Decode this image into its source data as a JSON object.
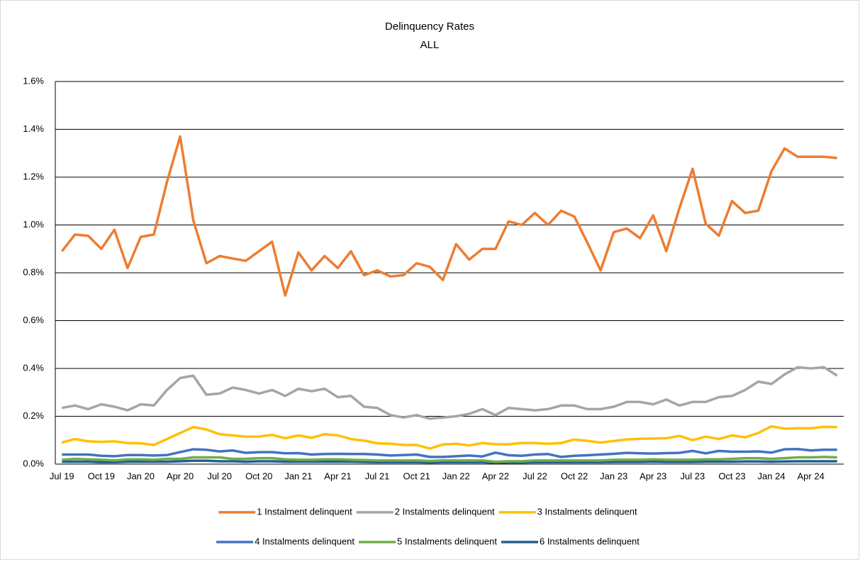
{
  "chart_data": {
    "type": "line",
    "title": "Delinquency Rates",
    "subtitle": "ALL",
    "categories": [
      "Jul 19",
      null,
      null,
      "Oct 19",
      null,
      null,
      "Jan 20",
      null,
      null,
      "Apr 20",
      null,
      null,
      "Jul 20",
      null,
      null,
      "Oct 20",
      null,
      null,
      "Jan 21",
      null,
      null,
      "Apr 21",
      null,
      null,
      "Jul 21",
      null,
      null,
      "Oct 21",
      null,
      null,
      "Jan 22",
      null,
      null,
      "Apr 22",
      null,
      null,
      "Jul 22",
      null,
      null,
      "Oct 22",
      null,
      null,
      "Jan 23",
      null,
      null,
      "Apr 23",
      null,
      null,
      "Jul 23",
      null,
      null,
      "Oct 23",
      null,
      null,
      "Jan 24",
      null,
      null,
      "Apr 24",
      null,
      null
    ],
    "series": [
      {
        "name": "1 Instalment delinquent",
        "color": "#ed7d31",
        "values": [
          0.89,
          0.96,
          0.955,
          0.9,
          0.98,
          0.82,
          0.95,
          0.96,
          1.18,
          1.37,
          1.02,
          0.84,
          0.87,
          0.86,
          0.85,
          0.89,
          0.93,
          0.705,
          0.885,
          0.81,
          0.87,
          0.82,
          0.89,
          0.79,
          0.81,
          0.785,
          0.79,
          0.84,
          0.825,
          0.77,
          0.92,
          0.855,
          0.9,
          0.9,
          1.015,
          1.0,
          1.05,
          1.0,
          1.06,
          1.035,
          0.925,
          0.81,
          0.97,
          0.985,
          0.945,
          1.04,
          0.89,
          1.07,
          1.235,
          1.005,
          0.955,
          1.1,
          1.05,
          1.06,
          1.225,
          1.32,
          1.285,
          1.285,
          1.285,
          1.28
        ]
      },
      {
        "name": "2 Instalments delinquent",
        "color": "#a5a5a5",
        "values": [
          0.235,
          0.245,
          0.23,
          0.25,
          0.24,
          0.225,
          0.25,
          0.245,
          0.31,
          0.36,
          0.37,
          0.29,
          0.295,
          0.32,
          0.31,
          0.295,
          0.31,
          0.285,
          0.315,
          0.305,
          0.315,
          0.28,
          0.285,
          0.24,
          0.235,
          0.205,
          0.195,
          0.205,
          0.19,
          0.195,
          0.2,
          0.21,
          0.23,
          0.205,
          0.235,
          0.23,
          0.225,
          0.23,
          0.245,
          0.245,
          0.23,
          0.23,
          0.24,
          0.26,
          0.26,
          0.25,
          0.27,
          0.245,
          0.26,
          0.26,
          0.28,
          0.285,
          0.31,
          0.345,
          0.335,
          0.375,
          0.405,
          0.4,
          0.405,
          0.37
        ]
      },
      {
        "name": "3 Instalments delinquent",
        "color": "#ffc000",
        "values": [
          0.09,
          0.105,
          0.095,
          0.093,
          0.095,
          0.088,
          0.087,
          0.08,
          0.105,
          0.13,
          0.155,
          0.145,
          0.125,
          0.12,
          0.115,
          0.115,
          0.122,
          0.108,
          0.12,
          0.11,
          0.125,
          0.12,
          0.105,
          0.098,
          0.087,
          0.085,
          0.08,
          0.08,
          0.065,
          0.082,
          0.085,
          0.078,
          0.088,
          0.083,
          0.083,
          0.088,
          0.088,
          0.085,
          0.088,
          0.103,
          0.097,
          0.09,
          0.097,
          0.103,
          0.106,
          0.107,
          0.108,
          0.118,
          0.1,
          0.115,
          0.105,
          0.12,
          0.112,
          0.13,
          0.158,
          0.148,
          0.15,
          0.15,
          0.156,
          0.155
        ]
      },
      {
        "name": "4 Instalments delinquent",
        "color": "#4472c4",
        "values": [
          0.04,
          0.04,
          0.04,
          0.035,
          0.033,
          0.038,
          0.038,
          0.036,
          0.038,
          0.05,
          0.062,
          0.06,
          0.053,
          0.057,
          0.047,
          0.05,
          0.05,
          0.045,
          0.046,
          0.04,
          0.042,
          0.043,
          0.042,
          0.042,
          0.04,
          0.036,
          0.038,
          0.04,
          0.03,
          0.03,
          0.033,
          0.036,
          0.032,
          0.048,
          0.037,
          0.035,
          0.04,
          0.042,
          0.03,
          0.035,
          0.037,
          0.04,
          0.043,
          0.047,
          0.045,
          0.044,
          0.046,
          0.047,
          0.055,
          0.045,
          0.055,
          0.052,
          0.052,
          0.053,
          0.048,
          0.062,
          0.063,
          0.057,
          0.06,
          0.06
        ]
      },
      {
        "name": "5 Instalments delinquent",
        "color": "#70ad47",
        "values": [
          0.018,
          0.022,
          0.02,
          0.018,
          0.015,
          0.02,
          0.02,
          0.018,
          0.022,
          0.022,
          0.028,
          0.028,
          0.028,
          0.022,
          0.022,
          0.025,
          0.025,
          0.02,
          0.018,
          0.018,
          0.02,
          0.02,
          0.018,
          0.017,
          0.015,
          0.015,
          0.015,
          0.015,
          0.013,
          0.015,
          0.015,
          0.015,
          0.015,
          0.01,
          0.012,
          0.012,
          0.015,
          0.015,
          0.015,
          0.015,
          0.015,
          0.015,
          0.018,
          0.018,
          0.018,
          0.02,
          0.018,
          0.018,
          0.018,
          0.02,
          0.02,
          0.022,
          0.025,
          0.025,
          0.022,
          0.025,
          0.028,
          0.028,
          0.03,
          0.028
        ]
      },
      {
        "name": "6 Instalments delinquent",
        "color": "#255e91",
        "values": [
          0.01,
          0.01,
          0.01,
          0.008,
          0.008,
          0.01,
          0.01,
          0.01,
          0.01,
          0.012,
          0.014,
          0.014,
          0.012,
          0.012,
          0.01,
          0.012,
          0.012,
          0.01,
          0.01,
          0.01,
          0.01,
          0.01,
          0.01,
          0.009,
          0.008,
          0.008,
          0.008,
          0.008,
          0.007,
          0.008,
          0.008,
          0.008,
          0.008,
          0.006,
          0.007,
          0.007,
          0.008,
          0.008,
          0.008,
          0.008,
          0.008,
          0.008,
          0.009,
          0.009,
          0.009,
          0.01,
          0.009,
          0.009,
          0.009,
          0.01,
          0.01,
          0.01,
          0.011,
          0.011,
          0.01,
          0.011,
          0.012,
          0.012,
          0.012,
          0.012
        ]
      }
    ],
    "ylim": [
      0,
      1.6
    ],
    "yticks": [
      {
        "value": 0,
        "label": "0.0%"
      },
      {
        "value": 0.2,
        "label": "0.2%"
      },
      {
        "value": 0.4,
        "label": "0.4%"
      },
      {
        "value": 0.6,
        "label": "0.6%"
      },
      {
        "value": 0.8,
        "label": "0.8%"
      },
      {
        "value": 1.0,
        "label": "1.0%"
      },
      {
        "value": 1.2,
        "label": "1.2%"
      },
      {
        "value": 1.4,
        "label": "1.4%"
      },
      {
        "value": 1.6,
        "label": "1.6%"
      }
    ],
    "grid": true,
    "legend": "bottom"
  }
}
